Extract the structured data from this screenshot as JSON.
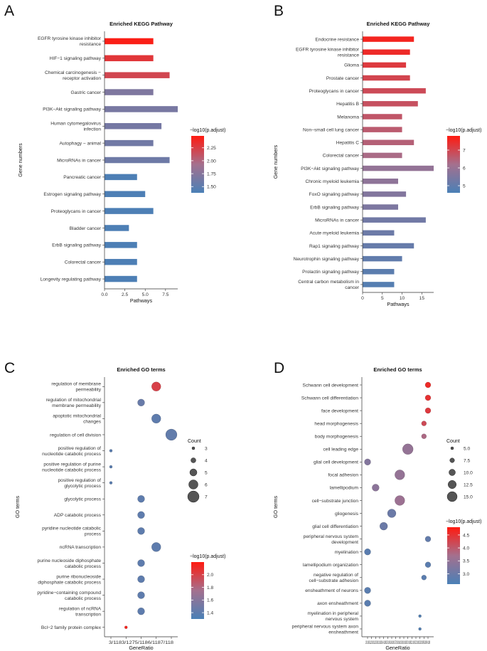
{
  "chart_data": [
    {
      "panel": "A",
      "type": "bar",
      "title": "Enriched KEGG Pathway",
      "xlabel": "Pathways",
      "ylabel": "Gene numbers",
      "xlim": [
        0,
        9
      ],
      "xticks": [
        "0.0",
        "2.5",
        "5.0",
        "7.5"
      ],
      "xtick_values": [
        0,
        2.5,
        5,
        7.5
      ],
      "categories": [
        "EGFR tyrosine kinase inhibitor\nresistance",
        "HIF−1 signaling pathway",
        "Chemical carcinogenesis −\nreceptor activation",
        "Gastric cancer",
        "PI3K−Akt signaling pathway",
        "Human cytomegalovirus\ninfection",
        "Autophagy − animal",
        "MicroRNAs in cancer",
        "Pancreatic cancer",
        "Estrogen signaling pathway",
        "Proteoglycans in cancer",
        "Bladder cancer",
        "ErbB signaling pathway",
        "Colorectal cancer",
        "Longevity regulating pathway"
      ],
      "values": [
        6,
        6,
        8,
        6,
        9,
        7,
        6,
        8,
        4,
        5,
        6,
        3,
        4,
        4,
        4
      ],
      "color_values": [
        2.45,
        2.3,
        2.2,
        1.7,
        1.66,
        1.64,
        1.62,
        1.6,
        1.4,
        1.4,
        1.4,
        1.4,
        1.4,
        1.4,
        1.4
      ],
      "legend": {
        "title": "−log10(p.adjust)",
        "min": 1.38,
        "max": 2.48,
        "ticks": [
          "2.25",
          "2.00",
          "1.75",
          "1.50"
        ],
        "tick_values": [
          2.25,
          2.0,
          1.75,
          1.5
        ]
      }
    },
    {
      "panel": "B",
      "type": "bar",
      "title": "Enriched KEGG Pathway",
      "xlabel": "Pathways",
      "ylabel": "Gene numbers",
      "xlim": [
        0,
        18
      ],
      "xticks": [
        "0",
        "5",
        "10",
        "15"
      ],
      "xtick_values": [
        0,
        5,
        10,
        15
      ],
      "categories": [
        "Endocrine resistance",
        "EGFR tyrosine kinase inhibitor\nresistance",
        "Glioma",
        "Prostate cancer",
        "Proteoglycans in cancer",
        "Hepatitis B",
        "Melanoma",
        "Non−small cell lung cancer",
        "Hepatitis C",
        "Colorectal cancer",
        "PI3K−Akt signaling pathway",
        "Chronic myeloid leukemia",
        "FoxO signaling pathway",
        "ErbB signaling pathway",
        "MicroRNAs in cancer",
        "Acute myeloid leukemia",
        "Rap1 signaling pathway",
        "Neurotrophin signaling pathway",
        "Prolactin signaling pathway",
        "Central carbon metabolism in\ncancer"
      ],
      "values": [
        13,
        12,
        11,
        12,
        16,
        14,
        10,
        10,
        13,
        10,
        18,
        9,
        11,
        9,
        16,
        8,
        13,
        10,
        8,
        8
      ],
      "color_values": [
        7.6,
        7.5,
        7.2,
        7.0,
        6.9,
        6.8,
        6.7,
        6.6,
        6.5,
        6.3,
        5.9,
        5.8,
        5.6,
        5.5,
        5.3,
        5.2,
        5.1,
        5.0,
        4.9,
        4.8
      ],
      "legend": {
        "title": "−log10(p.adjust)",
        "min": 4.6,
        "max": 7.8,
        "ticks": [
          "7",
          "6",
          "5"
        ],
        "tick_values": [
          7,
          6,
          5
        ]
      }
    },
    {
      "panel": "C",
      "type": "scatter",
      "title": "Enriched GO terms",
      "xlabel": "GeneRatio",
      "ylabel": "GO terms",
      "xticks": [
        "3/118",
        "3/127",
        "5/118",
        "6/118",
        "7/118"
      ],
      "categories": [
        "regulation of membrane\npermeability",
        "regulation of mitochondrial\nmembrane permeability",
        "apoptotic mitochondrial\nchanges",
        "regulation of cell division",
        "positive regulation of\nnucleotide catabolic process",
        "positive regulation of purine\nnucleotide catabolic process",
        "positive regulation of\nglycolytic process",
        "glycolytic process",
        "ADP catabolic process",
        "pyridine nucleotide catabolic\nprocess",
        "ncRNA transcription",
        "purine nucleoside diphosphate\ncatabolic process",
        "purine ribonucleoside\ndiphosphate catabolic process",
        "pyridine−containing compound\ncatabolic process",
        "regulation of ncRNA\ntranscription",
        "Bcl−2 family protein complex"
      ],
      "x_index": [
        3,
        2,
        3,
        4,
        0,
        0,
        0,
        2,
        2,
        2,
        3,
        2,
        2,
        2,
        2,
        1
      ],
      "counts": [
        6,
        5,
        6,
        7,
        3,
        3,
        3,
        5,
        5,
        5,
        6,
        5,
        5,
        5,
        5,
        3
      ],
      "color_values": [
        2.0,
        1.45,
        1.4,
        1.42,
        1.38,
        1.38,
        1.38,
        1.4,
        1.4,
        1.4,
        1.4,
        1.4,
        1.4,
        1.4,
        1.4,
        2.15
      ],
      "size_legend": {
        "title": "Count",
        "labels": [
          "3",
          "4",
          "5",
          "6",
          "7"
        ],
        "values": [
          3,
          4,
          5,
          6,
          7
        ]
      },
      "legend": {
        "title": "−log10(p.adjust)",
        "min": 1.3,
        "max": 2.2,
        "ticks": [
          "2.0",
          "1.8",
          "1.6",
          "1.4"
        ],
        "tick_values": [
          2.0,
          1.8,
          1.6,
          1.4
        ]
      }
    },
    {
      "panel": "D",
      "type": "scatter",
      "title": "Enriched GO terms",
      "xlabel": "GeneRatio",
      "ylabel": "GO terms",
      "xticks": [
        "10/189",
        "11/189",
        "12/189",
        "13/189",
        "14/189",
        "15/189",
        "16/189",
        "17/189",
        "18/189",
        "19/189",
        "20/189",
        "21/189",
        "22/189",
        "23/189",
        "5/189",
        "6/189"
      ],
      "categories": [
        "Schwann cell development",
        "Schwann cell differentiation",
        "face development",
        "head morphogenesis",
        "body morphogenesis",
        "cell leading edge",
        "glial cell development",
        "focal adhesion",
        "lamellipodium",
        "cell−substrate junction",
        "gliogenesis",
        "glial cell differentiation",
        "peripheral nervous system\ndevelopment",
        "myelination",
        "lamellipodium organization",
        "negative regulation of\ncell−substrate adhesion",
        "ensheathment of neurons",
        "axon ensheathment",
        "myelination in peripheral\nnervous system",
        "peripheral nervous system axon\nensheathment"
      ],
      "x_index": [
        15,
        15,
        15,
        14,
        14,
        10,
        0,
        8,
        2,
        8,
        6,
        4,
        15,
        0,
        15,
        14,
        0,
        0,
        13,
        13
      ],
      "counts": [
        9,
        9,
        9,
        8,
        8,
        16,
        10,
        15,
        11,
        15,
        13,
        12,
        9,
        10,
        9,
        8,
        10,
        10,
        5,
        5
      ],
      "color_values": [
        4.6,
        4.5,
        4.4,
        4.2,
        3.8,
        3.5,
        3.3,
        3.5,
        3.4,
        3.6,
        3.0,
        3.0,
        2.9,
        2.8,
        2.8,
        2.8,
        2.8,
        2.8,
        2.7,
        2.7
      ],
      "size_legend": {
        "title": "Count",
        "labels": [
          "5.0",
          "7.5",
          "10.0",
          "12.5",
          "15.0"
        ],
        "values": [
          5,
          7.5,
          10,
          12.5,
          15
        ]
      },
      "legend": {
        "title": "−log10(p.adjust)",
        "min": 2.6,
        "max": 4.8,
        "ticks": [
          "4.5",
          "4.0",
          "3.5",
          "3.0"
        ],
        "tick_values": [
          4.5,
          4.0,
          3.5,
          3.0
        ]
      }
    }
  ]
}
